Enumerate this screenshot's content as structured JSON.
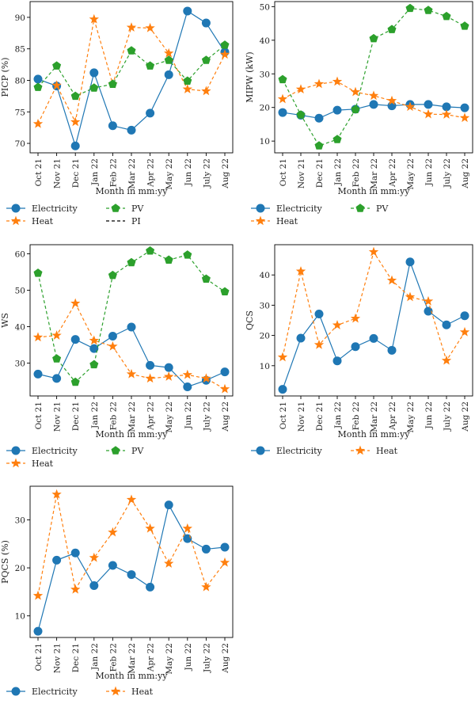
{
  "colors": {
    "electricity": "#1f77b4",
    "heat": "#ff7f0e",
    "pv": "#2ca02c",
    "pi": "#000000"
  },
  "chart_data": [
    {
      "type": "line",
      "ylabel": "PICP (%)",
      "xlabel": "Month in mm:yy",
      "categories": [
        "Oct 21",
        "Nov 21",
        "Dec 21",
        "Jan 22",
        "Feb 22",
        "Mar 22",
        "Apr 22",
        "May 22",
        "Jun 22",
        "July 22",
        "Aug 22"
      ],
      "ylim": [
        68.5,
        92.5
      ],
      "yticks": [
        70,
        75,
        80,
        85,
        90
      ],
      "series": [
        {
          "name": "Electricity",
          "color": "#1f77b4",
          "marker": "circle",
          "dash": "solid",
          "values": [
            80.2,
            79.1,
            69.6,
            81.2,
            72.8,
            72.1,
            74.8,
            80.9,
            91.0,
            89.1,
            84.5
          ]
        },
        {
          "name": "Heat",
          "color": "#ff7f0e",
          "marker": "star",
          "dash": "dashed",
          "values": [
            73.1,
            79.2,
            73.4,
            89.7,
            79.4,
            88.4,
            88.3,
            84.3,
            78.6,
            78.3,
            84.1
          ]
        },
        {
          "name": "PV",
          "color": "#2ca02c",
          "marker": "pentagon",
          "dash": "dashed",
          "values": [
            78.9,
            82.3,
            77.5,
            78.8,
            79.4,
            84.7,
            82.3,
            83.2,
            79.9,
            83.2,
            85.6
          ]
        }
      ],
      "legend": [
        {
          "name": "Electricity",
          "color": "#1f77b4",
          "marker": "circle",
          "dash": "solid"
        },
        {
          "name": "PV",
          "color": "#2ca02c",
          "marker": "pentagon",
          "dash": "dashed"
        },
        {
          "name": "Heat",
          "color": "#ff7f0e",
          "marker": "star",
          "dash": "dashed"
        },
        {
          "name": "PI",
          "color": "#000000",
          "marker": "none",
          "dash": "dashed"
        }
      ]
    },
    {
      "type": "line",
      "ylabel": "MIPW (kW)",
      "xlabel": "Month in mm:yy",
      "categories": [
        "Oct 21",
        "Nov 21",
        "Dec 21",
        "Jan 22",
        "Feb 22",
        "Mar 22",
        "Apr 22",
        "May 22",
        "Jun 22",
        "July 22",
        "Aug 22"
      ],
      "ylim": [
        6.5,
        51.5
      ],
      "yticks": [
        10,
        20,
        30,
        40,
        50
      ],
      "series": [
        {
          "name": "Electricity",
          "color": "#1f77b4",
          "marker": "circle",
          "dash": "solid",
          "values": [
            18.5,
            17.7,
            16.8,
            19.2,
            19.5,
            20.9,
            20.5,
            20.9,
            20.9,
            20.2,
            19.9
          ]
        },
        {
          "name": "Heat",
          "color": "#ff7f0e",
          "marker": "star",
          "dash": "dashed",
          "values": [
            22.5,
            25.4,
            27.0,
            27.7,
            24.6,
            23.5,
            22.0,
            20.2,
            18.0,
            17.9,
            16.9
          ]
        },
        {
          "name": "PV",
          "color": "#2ca02c",
          "marker": "pentagon",
          "dash": "dashed",
          "values": [
            28.3,
            17.8,
            8.6,
            10.5,
            19.4,
            40.5,
            43.2,
            49.5,
            48.9,
            47.1,
            44.2
          ]
        }
      ],
      "legend": [
        {
          "name": "Electricity",
          "color": "#1f77b4",
          "marker": "circle",
          "dash": "solid"
        },
        {
          "name": "PV",
          "color": "#2ca02c",
          "marker": "pentagon",
          "dash": "dashed"
        },
        {
          "name": "Heat",
          "color": "#ff7f0e",
          "marker": "star",
          "dash": "dashed"
        }
      ]
    },
    {
      "type": "line",
      "ylabel": "WS",
      "xlabel": "Month in mm:yy",
      "categories": [
        "Oct 21",
        "Nov 21",
        "Dec 21",
        "Jan 22",
        "Feb 22",
        "Mar 22",
        "Apr 22",
        "May 22",
        "Jun 22",
        "July 22",
        "Aug 22"
      ],
      "ylim": [
        21,
        62.5
      ],
      "yticks": [
        30,
        40,
        50,
        60
      ],
      "series": [
        {
          "name": "Electricity",
          "color": "#1f77b4",
          "marker": "circle",
          "dash": "solid",
          "values": [
            27.0,
            25.8,
            36.5,
            34.0,
            37.4,
            39.9,
            29.4,
            28.8,
            23.5,
            25.3,
            27.6
          ]
        },
        {
          "name": "Heat",
          "color": "#ff7f0e",
          "marker": "star",
          "dash": "dashed",
          "values": [
            37.1,
            37.6,
            46.4,
            36.2,
            34.6,
            27.0,
            25.8,
            26.3,
            26.8,
            25.8,
            22.9
          ]
        },
        {
          "name": "PV",
          "color": "#2ca02c",
          "marker": "pentagon",
          "dash": "dashed",
          "values": [
            54.7,
            31.2,
            24.8,
            29.6,
            54.1,
            57.6,
            60.8,
            58.3,
            59.7,
            53.1,
            49.6
          ]
        }
      ],
      "legend": [
        {
          "name": "Electricity",
          "color": "#1f77b4",
          "marker": "circle",
          "dash": "solid"
        },
        {
          "name": "PV",
          "color": "#2ca02c",
          "marker": "pentagon",
          "dash": "dashed"
        },
        {
          "name": "Heat",
          "color": "#ff7f0e",
          "marker": "star",
          "dash": "dashed"
        }
      ]
    },
    {
      "type": "line",
      "ylabel": "QCS",
      "xlabel": "Month in mm:yy",
      "categories": [
        "Oct 21",
        "Nov 21",
        "Dec 21",
        "Jan 22",
        "Feb 22",
        "Mar 22",
        "Apr 22",
        "May 22",
        "Jun 22",
        "July 22",
        "Aug 22"
      ],
      "ylim": [
        0,
        50
      ],
      "yticks": [
        10,
        20,
        30,
        40
      ],
      "series": [
        {
          "name": "Electricity",
          "color": "#1f77b4",
          "marker": "circle",
          "dash": "solid",
          "values": [
            2.2,
            19.1,
            27.1,
            11.6,
            16.3,
            19.0,
            15.1,
            44.3,
            28.0,
            23.5,
            26.5
          ]
        },
        {
          "name": "Heat",
          "color": "#ff7f0e",
          "marker": "star",
          "dash": "dashed",
          "values": [
            12.8,
            41.2,
            16.9,
            23.4,
            25.6,
            47.6,
            38.2,
            32.7,
            31.3,
            11.7,
            21.1
          ]
        }
      ],
      "legend": [
        {
          "name": "Electricity",
          "color": "#1f77b4",
          "marker": "circle",
          "dash": "solid"
        },
        {
          "name": "Heat",
          "color": "#ff7f0e",
          "marker": "star",
          "dash": "dashed"
        }
      ]
    },
    {
      "type": "line",
      "ylabel": "PQCS (%)",
      "xlabel": "Month in mm:yy",
      "categories": [
        "Oct 21",
        "Nov 21",
        "Dec 21",
        "Jan 22",
        "Feb 22",
        "Mar 22",
        "Apr 22",
        "May 22",
        "Jun 22",
        "July 22",
        "Aug 22"
      ],
      "ylim": [
        5.5,
        37
      ],
      "yticks": [
        10,
        20,
        30
      ],
      "series": [
        {
          "name": "Electricity",
          "color": "#1f77b4",
          "marker": "circle",
          "dash": "solid",
          "values": [
            6.8,
            21.6,
            23.1,
            16.3,
            20.5,
            18.6,
            16.0,
            33.1,
            26.1,
            23.9,
            24.3
          ]
        },
        {
          "name": "Heat",
          "color": "#ff7f0e",
          "marker": "star",
          "dash": "dashed",
          "values": [
            14.2,
            35.3,
            15.5,
            22.1,
            27.4,
            34.2,
            28.2,
            20.9,
            28.2,
            16.0,
            21.1
          ]
        }
      ],
      "legend": [
        {
          "name": "Electricity",
          "color": "#1f77b4",
          "marker": "circle",
          "dash": "solid"
        },
        {
          "name": "Heat",
          "color": "#ff7f0e",
          "marker": "star",
          "dash": "dashed"
        }
      ]
    }
  ]
}
